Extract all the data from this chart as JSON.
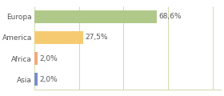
{
  "categories": [
    "Asia",
    "Africa",
    "America",
    "Europa"
  ],
  "values": [
    2.0,
    2.0,
    27.5,
    68.6
  ],
  "labels": [
    "2,0%",
    "2,0%",
    "27,5%",
    "68,6%"
  ],
  "bar_colors": [
    "#7b8fc7",
    "#f4a87c",
    "#f5cb72",
    "#b0c98a"
  ],
  "background_color": "#ffffff",
  "grid_color": "#c8d4a0",
  "text_color": "#555555",
  "xlim": [
    0,
    105
  ],
  "label_fontsize": 6.5,
  "category_fontsize": 6.5,
  "bar_height": 0.6,
  "grid_positions": [
    0,
    25,
    50,
    75,
    100
  ]
}
